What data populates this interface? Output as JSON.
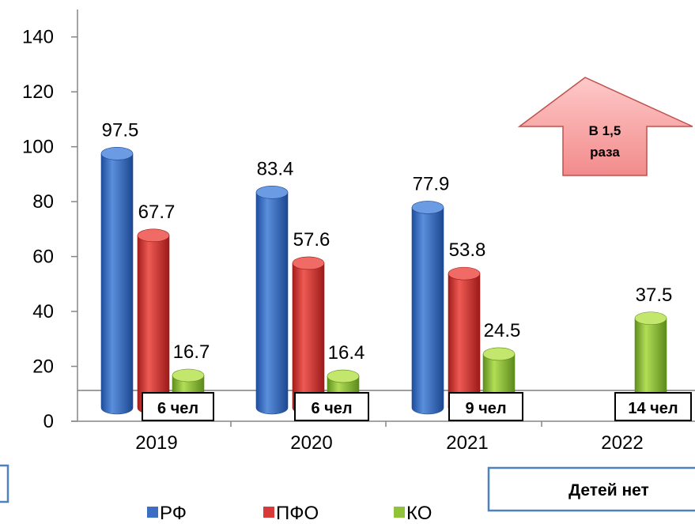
{
  "chart_data": {
    "type": "bar",
    "categories": [
      "2019",
      "2020",
      "2021",
      "2022"
    ],
    "series": [
      {
        "name": "РФ",
        "values": [
          97.5,
          83.4,
          77.9,
          null
        ],
        "color": "#3a6fc4"
      },
      {
        "name": "ПФО",
        "values": [
          67.7,
          57.6,
          53.8,
          null
        ],
        "color": "#d73a38"
      },
      {
        "name": "КО",
        "values": [
          16.7,
          16.4,
          24.5,
          37.5
        ],
        "color": "#8fc33a"
      }
    ],
    "ylim": [
      0,
      150
    ],
    "yticks": [
      0,
      20,
      40,
      60,
      80,
      100,
      120,
      140
    ],
    "legend_position": "bottom",
    "counts": [
      "6 чел",
      "6 чел",
      "9 чел",
      "14 чел"
    ],
    "annotations": {
      "arrow_line1": "В 1,5",
      "arrow_line2": "раза",
      "note": "Детей нет"
    }
  }
}
